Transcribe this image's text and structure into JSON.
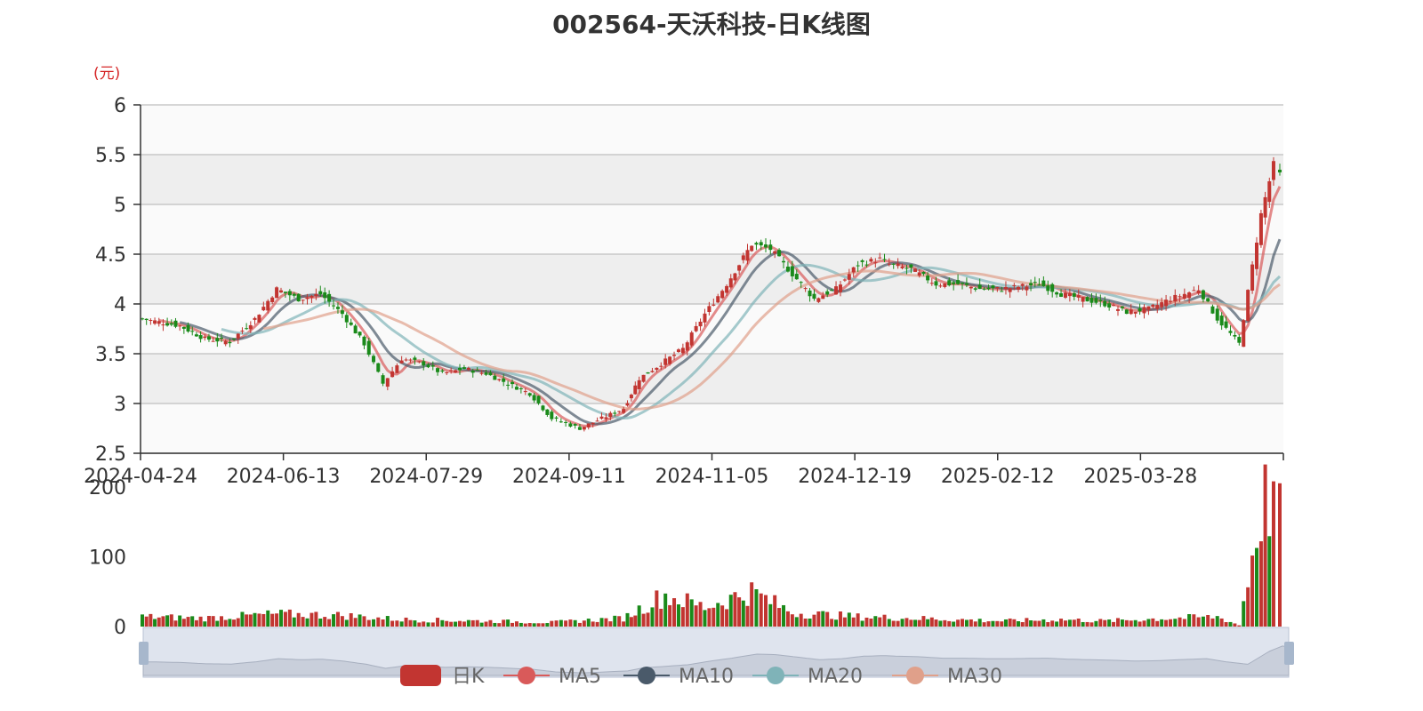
{
  "chart_data": {
    "type": "candlestick",
    "title": "002564-天沃科技-日K线图",
    "unit_label": "(元)",
    "y_ticks": [
      "2.5",
      "3",
      "3.5",
      "4",
      "4.5",
      "5",
      "5.5",
      "6"
    ],
    "ylim": [
      2.5,
      6
    ],
    "x_ticks": [
      "2024-04-24",
      "2024-06-13",
      "2024-07-29",
      "2024-09-11",
      "2024-11-05",
      "2024-12-19",
      "2025-02-12",
      "2025-03-28"
    ],
    "volume_ticks": [
      "0",
      "100",
      "200"
    ],
    "volume_ylim": [
      0,
      200
    ],
    "legend": [
      "日K",
      "MA5",
      "MA10",
      "MA20",
      "MA30"
    ],
    "colors": {
      "up": "#c23531",
      "down": "#1a8a1a",
      "ma5": "#d95a5a",
      "ma10": "#4a5a6a",
      "ma20": "#7fb3b8",
      "ma30": "#e0a08a"
    },
    "close_trend": [
      [
        "2024-04-24",
        3.85
      ],
      [
        "2024-05-06",
        3.78
      ],
      [
        "2024-05-14",
        3.65
      ],
      [
        "2024-05-22",
        3.62
      ],
      [
        "2024-05-30",
        3.85
      ],
      [
        "2024-06-06",
        4.15
      ],
      [
        "2024-06-13",
        4.05
      ],
      [
        "2024-06-20",
        4.1
      ],
      [
        "2024-06-27",
        3.9
      ],
      [
        "2024-07-04",
        3.6
      ],
      [
        "2024-07-10",
        3.2
      ],
      [
        "2024-07-16",
        3.45
      ],
      [
        "2024-07-23",
        3.4
      ],
      [
        "2024-07-29",
        3.3
      ],
      [
        "2024-08-05",
        3.35
      ],
      [
        "2024-08-12",
        3.3
      ],
      [
        "2024-08-19",
        3.2
      ],
      [
        "2024-08-26",
        3.1
      ],
      [
        "2024-09-02",
        2.85
      ],
      [
        "2024-09-11",
        2.75
      ],
      [
        "2024-09-18",
        2.85
      ],
      [
        "2024-09-25",
        2.95
      ],
      [
        "2024-09-30",
        3.25
      ],
      [
        "2024-10-14",
        3.55
      ],
      [
        "2024-10-21",
        3.9
      ],
      [
        "2024-10-28",
        4.2
      ],
      [
        "2024-11-05",
        4.6
      ],
      [
        "2024-11-11",
        4.55
      ],
      [
        "2024-11-18",
        4.3
      ],
      [
        "2024-11-25",
        4.05
      ],
      [
        "2024-12-02",
        4.15
      ],
      [
        "2024-12-09",
        4.4
      ],
      [
        "2024-12-16",
        4.45
      ],
      [
        "2024-12-19",
        4.4
      ],
      [
        "2024-12-26",
        4.35
      ],
      [
        "2025-01-03",
        4.2
      ],
      [
        "2025-01-10",
        4.2
      ],
      [
        "2025-01-17",
        4.15
      ],
      [
        "2025-01-24",
        4.15
      ],
      [
        "2025-02-05",
        4.2
      ],
      [
        "2025-02-12",
        4.1
      ],
      [
        "2025-02-19",
        4.05
      ],
      [
        "2025-02-26",
        4.0
      ],
      [
        "2025-03-05",
        3.92
      ],
      [
        "2025-03-12",
        3.95
      ],
      [
        "2025-03-19",
        4.05
      ],
      [
        "2025-03-28",
        4.15
      ],
      [
        "2025-04-03",
        3.85
      ],
      [
        "2025-04-10",
        3.6
      ],
      [
        "2025-04-17",
        4.9
      ],
      [
        "2025-04-21",
        5.4
      ],
      [
        "2025-04-23",
        5.3
      ]
    ],
    "volume_trend": [
      [
        "2024-04-24",
        14
      ],
      [
        "2024-05-14",
        12
      ],
      [
        "2024-06-06",
        18
      ],
      [
        "2024-06-27",
        16
      ],
      [
        "2024-07-16",
        10
      ],
      [
        "2024-08-12",
        8
      ],
      [
        "2024-09-02",
        6
      ],
      [
        "2024-09-25",
        12
      ],
      [
        "2024-10-08",
        45
      ],
      [
        "2024-10-21",
        28
      ],
      [
        "2024-11-05",
        50
      ],
      [
        "2024-11-18",
        20
      ],
      [
        "2024-12-09",
        14
      ],
      [
        "2024-12-26",
        12
      ],
      [
        "2025-01-24",
        8
      ],
      [
        "2025-02-12",
        10
      ],
      [
        "2025-02-26",
        8
      ],
      [
        "2025-03-19",
        12
      ],
      [
        "2025-04-03",
        14
      ],
      [
        "2025-04-10",
        2
      ],
      [
        "2025-04-17",
        170
      ],
      [
        "2025-04-21",
        195
      ],
      [
        "2025-04-23",
        150
      ]
    ]
  }
}
